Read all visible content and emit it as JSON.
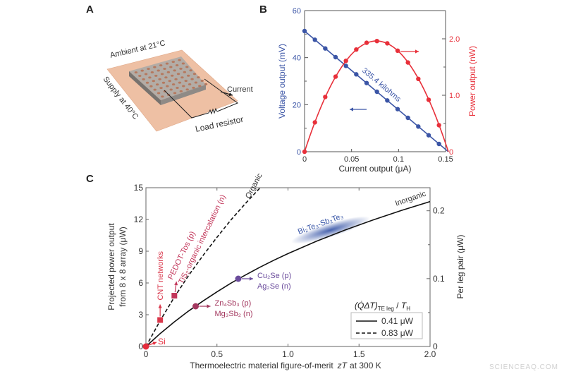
{
  "panels": {
    "a": "A",
    "b": "B",
    "c": "C"
  },
  "panel_a": {
    "ambient_label": "Ambient at 21°C",
    "supply_label": "Supply at 40°C",
    "current_label": "Current",
    "load_label": "Load resistor",
    "colors": {
      "plate": "#eec0a4",
      "device": "#8f8a86",
      "device_top": "#b3aca6",
      "pillar": "#b5785e"
    }
  },
  "chart_data": [
    {
      "type": "line",
      "panel": "B",
      "xlabel": "Current output (μA)",
      "ylabel": "Voltage output (mV)",
      "y2label": "Power output (nW)",
      "xlim": [
        0,
        0.15
      ],
      "ylim": [
        0,
        60
      ],
      "y2lim": [
        0,
        2.5
      ],
      "xticks": [
        0,
        0.05,
        0.1,
        0.15
      ],
      "xtick_labels": [
        "0",
        "0.05",
        "0.1",
        "0.15"
      ],
      "yticks": [
        0,
        20,
        40,
        60
      ],
      "ytick_labels": [
        "0",
        "20",
        "40",
        "60"
      ],
      "y2ticks": [
        0,
        1.0,
        2.0
      ],
      "y2tick_labels": [
        "0",
        "1.0",
        "2.0"
      ],
      "annotation": "335.4 kilohms",
      "series": [
        {
          "axis": "left",
          "color": "#3b55a6",
          "x": [
            0,
            0.011,
            0.022,
            0.033,
            0.044,
            0.055,
            0.066,
            0.077,
            0.088,
            0.099,
            0.11,
            0.121,
            0.132,
            0.143
          ],
          "y": [
            51.3,
            47.6,
            43.9,
            40.2,
            36.5,
            32.9,
            29.2,
            25.5,
            21.8,
            18.1,
            14.4,
            10.7,
            7.0,
            3.3
          ]
        },
        {
          "axis": "right",
          "color": "#e8303a",
          "x": [
            0,
            0.011,
            0.022,
            0.033,
            0.044,
            0.055,
            0.066,
            0.077,
            0.088,
            0.099,
            0.11,
            0.121,
            0.132,
            0.143
          ],
          "y": [
            0,
            0.52,
            0.97,
            1.33,
            1.61,
            1.81,
            1.93,
            1.96,
            1.92,
            1.79,
            1.58,
            1.29,
            0.92,
            0.47
          ]
        }
      ]
    },
    {
      "type": "line",
      "panel": "C",
      "xlabel": "Thermoelectric material figure-of-merit",
      "xlabel_italic": "zT",
      "xlabel_tail": "at 300 K",
      "ylabel_line1": "Projected power output",
      "ylabel_line2": "from 8 x 8 array (μW)",
      "y2label": "Per leg pair (μW)",
      "xlim": [
        0,
        2.0
      ],
      "ylim": [
        0,
        15
      ],
      "y2lim": [
        0,
        0.234
      ],
      "xticks": [
        0,
        0.5,
        1.0,
        1.5,
        2.0
      ],
      "xtick_labels": [
        "0",
        "0.5",
        "1.0",
        "1.5",
        "2.0"
      ],
      "yticks": [
        0,
        3,
        6,
        9,
        12,
        15
      ],
      "ytick_labels": [
        "0",
        "3",
        "6",
        "9",
        "12",
        "15"
      ],
      "y2ticks": [
        0,
        0.1,
        0.2
      ],
      "y2tick_labels": [
        "0",
        "0.1",
        "0.2"
      ],
      "series": [
        {
          "label": "Inorganic",
          "style": "solid",
          "color": "#111111",
          "x": [
            0,
            0.1,
            0.2,
            0.3,
            0.4,
            0.5,
            0.6,
            0.7,
            0.8,
            0.9,
            1.0,
            1.2,
            1.4,
            1.6,
            1.8,
            2.0
          ],
          "y": [
            0,
            1.22,
            2.33,
            3.35,
            4.28,
            5.16,
            5.99,
            6.75,
            7.47,
            8.15,
            8.77,
            9.94,
            10.99,
            11.96,
            12.86,
            13.69
          ]
        },
        {
          "label": "Organic",
          "style": "dashed",
          "color": "#111111",
          "x": [
            0,
            0.1,
            0.2,
            0.3,
            0.4,
            0.5,
            0.6,
            0.7,
            0.8
          ],
          "y": [
            0,
            2.44,
            4.66,
            6.7,
            8.56,
            10.32,
            11.98,
            13.5,
            14.94
          ]
        }
      ],
      "markers": [
        {
          "name": "si",
          "shape": "circle",
          "x": 0,
          "y": 0,
          "color": "#e52b3b",
          "labels": [
            "Si"
          ]
        },
        {
          "name": "cnt",
          "shape": "square",
          "x": 0.1,
          "y": 2.5,
          "color": "#d9364a",
          "labels": [
            "CNT networks"
          ]
        },
        {
          "name": "pedot",
          "shape": "square",
          "x": 0.2,
          "y": 4.8,
          "color": "#c2365a",
          "labels": [
            "PEDOT-Tos (p)",
            "TiS₂-organic intercalation (n)"
          ]
        },
        {
          "name": "zn4sb3",
          "shape": "circle",
          "x": 0.35,
          "y": 3.8,
          "color": "#a3385f",
          "labels": [
            "Zn₄Sb₃ (p)",
            "Mg₃Sb₂ (n)"
          ]
        },
        {
          "name": "cu2se",
          "shape": "circle",
          "x": 0.65,
          "y": 6.4,
          "color": "#6b4c9c",
          "labels": [
            "Cu₂Se (p)",
            "Ag₂Se (n)"
          ]
        }
      ],
      "region": {
        "label": "Bi₂Te₃-Sb₂Te₃",
        "x_range": [
          1.05,
          1.55
        ],
        "color": "#3d5aaa"
      },
      "legend": {
        "title_main": "(Q̇ΔT)",
        "title_sub1": "TE leg",
        "title_mid": " / ",
        "title_T": "T",
        "title_sub2": "H",
        "entries": [
          {
            "style": "solid",
            "label": "0.41 μW"
          },
          {
            "style": "dashed",
            "label": "0.83 μW"
          }
        ],
        "placement": "bottom-right"
      }
    }
  ],
  "watermark": "SCIENCEAQ.COM"
}
